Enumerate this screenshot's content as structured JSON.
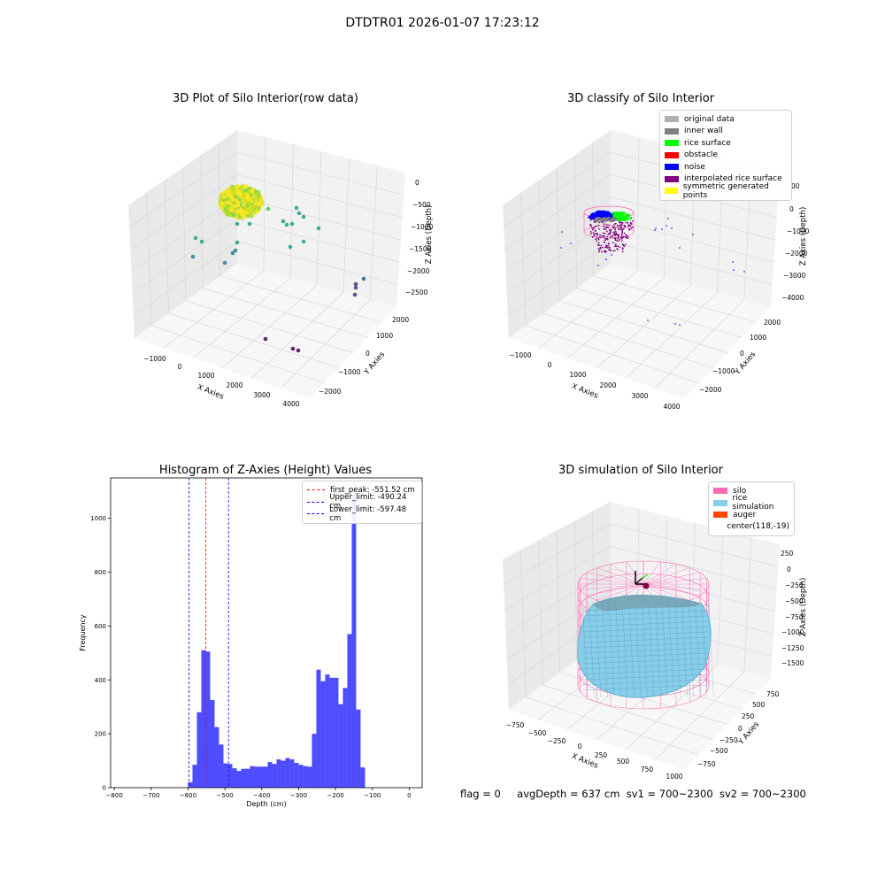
{
  "suptitle": "DTDTR01 2026-01-07 17:23:12",
  "footer": {
    "flag": "flag = 0",
    "avg": "avgDepth = 637 cm",
    "sv1": "sv1 = 700~2300",
    "sv2": "sv2 = 700~2300"
  },
  "chart_data": [
    {
      "type": "scatter",
      "title": "3D Plot of Silo Interior(row data)",
      "xlabel": "X Axies",
      "ylabel": "Y Axies",
      "zlabel": "Z Axies (Depth)",
      "x_ticks": [
        "−1000",
        "0",
        "1000",
        "2000",
        "3000",
        "4000"
      ],
      "y_ticks": [
        "−2000",
        "−1000",
        "0",
        "1000",
        "2000"
      ],
      "z_ticks": [
        "0",
        "−500",
        "−1000",
        "−1500",
        "−2000",
        "−2500"
      ],
      "colormap": [
        "#fde725",
        "#a0da39",
        "#4ac16d",
        "#1fa187",
        "#277f8e",
        "#365c8d",
        "#46327e",
        "#440154"
      ]
    },
    {
      "type": "scatter",
      "title": "3D classify of Silo Interior",
      "xlabel": "X Axies",
      "ylabel": "Y Axies",
      "zlabel": "Z Axies (Depth)",
      "x_ticks": [
        "−1000",
        "0",
        "1000",
        "2000",
        "3000",
        "4000"
      ],
      "y_ticks": [
        "−2000",
        "−1000",
        "0",
        "1000",
        "2000"
      ],
      "z_ticks": [
        "0",
        "−1000",
        "−2000",
        "−3000",
        "−4000"
      ],
      "legend": [
        {
          "label": "original data",
          "color": "#b0b0b0"
        },
        {
          "label": "inner wall",
          "color": "#808080"
        },
        {
          "label": "rice surface",
          "color": "#00ff00"
        },
        {
          "label": "obstacle",
          "color": "#ff0000"
        },
        {
          "label": "noise",
          "color": "#0000ff"
        },
        {
          "label": "interpolated rice surface",
          "color": "#800080"
        },
        {
          "label": "symmetric generated points",
          "color": "#ffff00"
        }
      ],
      "z_extra_tick": "00"
    },
    {
      "type": "bar",
      "title": "Histogram of Z-Axies (Height) Values",
      "xlabel": "Depth (cm)",
      "ylabel": "Frequency",
      "xlim": [
        -810,
        35
      ],
      "ylim": [
        0,
        1150
      ],
      "x_ticks": [
        -800,
        -700,
        -600,
        -500,
        -400,
        -300,
        -200,
        -100,
        0
      ],
      "y_ticks": [
        0,
        200,
        400,
        600,
        800,
        1000
      ],
      "bin_width": 12,
      "bin_start": -600,
      "values": [
        20,
        85,
        280,
        510,
        505,
        325,
        225,
        160,
        90,
        88,
        72,
        62,
        70,
        70,
        80,
        78,
        78,
        78,
        95,
        88,
        105,
        100,
        110,
        105,
        92,
        85,
        80,
        78,
        200,
        438,
        395,
        420,
        408,
        408,
        310,
        370,
        570,
        1100,
        290,
        75
      ],
      "bar_color": "#4d4dff",
      "vlines": [
        {
          "label": "first_peak: -551.52 cm",
          "x": -551.52,
          "color": "#ff0000"
        },
        {
          "label": "Upper_limit: -490.24 cm",
          "x": -490.24,
          "color": "#0000ff"
        },
        {
          "label": "Lower_limit: -597.48 cm",
          "x": -597.48,
          "color": "#0000ff"
        }
      ]
    },
    {
      "type": "area",
      "title": "3D simulation of Silo Interior",
      "xlabel": "X Axies",
      "ylabel": "Y Axies",
      "zlabel": "Z Axies (Depth)",
      "x_ticks": [
        "−750",
        "−500",
        "−250",
        "0",
        "250",
        "500",
        "750",
        "1000"
      ],
      "y_ticks": [
        "−750",
        "−500",
        "−250",
        "0",
        "250",
        "500",
        "750"
      ],
      "z_ticks": [
        "250",
        "0",
        "−250",
        "−500",
        "−750",
        "−1000",
        "−1250",
        "−1500"
      ],
      "legend": [
        {
          "label": "silo",
          "color": "#ff69b4"
        },
        {
          "label": "rice simulation",
          "color": "#87ceeb"
        },
        {
          "label": "auger",
          "color": "#ff4500"
        },
        {
          "label": "center(118,-19)",
          "color": ""
        }
      ]
    }
  ]
}
